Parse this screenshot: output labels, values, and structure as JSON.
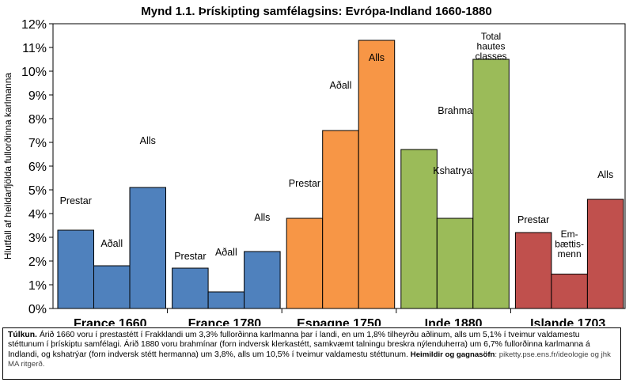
{
  "chart_data": {
    "type": "bar",
    "title": "Mynd 1.1. Þrískipting samfélagsins: Evrópa-Indland 1660-1880",
    "ylabel": "Hlutfall af heildarfjölda fullorðinna karlmanna",
    "xlabel": "",
    "ylim": [
      0,
      12
    ],
    "yticks": [
      "0%",
      "1%",
      "2%",
      "3%",
      "4%",
      "5%",
      "6%",
      "7%",
      "8%",
      "9%",
      "10%",
      "11%",
      "12%"
    ],
    "grid": false,
    "groups": [
      {
        "name": "France 1660",
        "color": "#4f81bd",
        "bars": [
          {
            "label": "Prestar",
            "value": 3.3
          },
          {
            "label": "Aðall",
            "value": 1.8
          },
          {
            "label": "Alls",
            "value": 5.1
          }
        ]
      },
      {
        "name": "France 1780",
        "color": "#4f81bd",
        "bars": [
          {
            "label": "Prestar",
            "value": 1.7
          },
          {
            "label": "Aðall",
            "value": 0.7
          },
          {
            "label": "Alls",
            "value": 2.4
          }
        ]
      },
      {
        "name": "Espagne 1750",
        "color": "#f79646",
        "bars": [
          {
            "label": "Prestar",
            "value": 3.8
          },
          {
            "label": "Aðall",
            "value": 7.5
          },
          {
            "label": "Alls",
            "value": 11.3
          }
        ]
      },
      {
        "name": "Inde 1880",
        "color": "#9bbb59",
        "bars": [
          {
            "label": "Brahmanes",
            "value": 6.7
          },
          {
            "label": "Kshatryas",
            "value": 3.8
          },
          {
            "label": "Total hautes classes",
            "value": 10.5
          }
        ]
      },
      {
        "name": "Islande 1703",
        "color": "#c0504d",
        "bars": [
          {
            "label": "Prestar",
            "value": 3.2
          },
          {
            "label": "Em-bættis-menn",
            "value": 1.45
          },
          {
            "label": "Alls",
            "value": 4.6
          }
        ]
      }
    ]
  },
  "caption": {
    "label": "Túlkun.",
    "text": " Árið 1660 voru í prestastétt í Frakklandi um 3,3% fullorðinna karlmanna þar í landi, en um 1,8% tilheyrðu aðlinum, alls um 5,1% í tveimur valdamestu stéttunum í þrískiptu samfélagi. Árið 1880 voru brahmínar (forn indversk klerkastétt, samkvæmt talningu breskra nýlenduherra) um 6,7% fullorðinna karlmanna á Indlandi, og kshatrýar (forn indversk stétt hermanna) um 3,8%, alls um 10,5% í tveimur valdamestu stéttunum.",
    "source_label": "Heimildir og gagnasöfn",
    "source_text": ": piketty.pse.ens.fr/ideologie og jhk MA ritgerð."
  }
}
